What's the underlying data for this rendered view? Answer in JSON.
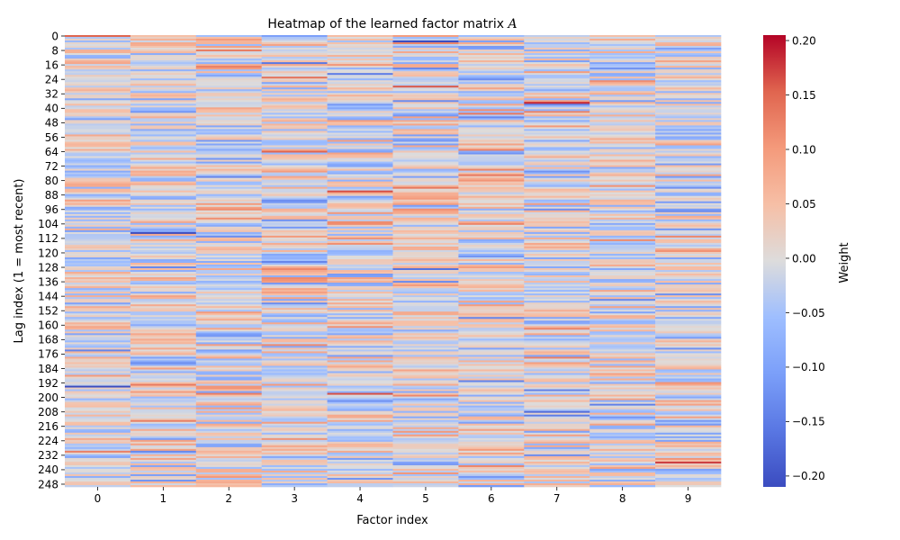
{
  "chart_data": {
    "type": "heatmap",
    "title_prefix": "Heatmap of the learned factor matrix ",
    "title_symbol": "A",
    "xlabel": "Factor index",
    "ylabel": "Lag index (1 = most recent)",
    "colorbar_label": "Weight",
    "colormap": "coolwarm",
    "n_rows": 250,
    "n_cols": 10,
    "x_ticks": [
      "0",
      "1",
      "2",
      "3",
      "4",
      "5",
      "6",
      "7",
      "8",
      "9"
    ],
    "y_ticks": [
      "0",
      "8",
      "16",
      "24",
      "32",
      "40",
      "48",
      "56",
      "64",
      "72",
      "80",
      "88",
      "96",
      "104",
      "112",
      "120",
      "128",
      "136",
      "144",
      "152",
      "160",
      "168",
      "176",
      "184",
      "192",
      "200",
      "208",
      "216",
      "224",
      "232",
      "240",
      "248"
    ],
    "value_range": [
      -0.21,
      0.205
    ],
    "colorbar_ticks": [
      "0.20",
      "0.15",
      "0.10",
      "0.05",
      "0.00",
      "−0.05",
      "−0.10",
      "−0.15",
      "−0.20"
    ],
    "colorbar_tick_values": [
      0.2,
      0.15,
      0.1,
      0.05,
      0.0,
      -0.05,
      -0.1,
      -0.15,
      -0.2
    ],
    "values_note": "250 x 10 weights in roughly [-0.21, 0.20]; individual cell values are not legible at this resolution and are approximated by a seeded generator",
    "seed": 12345
  },
  "colors": {
    "cool": "#3b4cc0",
    "neutral": "#dddddd",
    "warm": "#b40426"
  }
}
